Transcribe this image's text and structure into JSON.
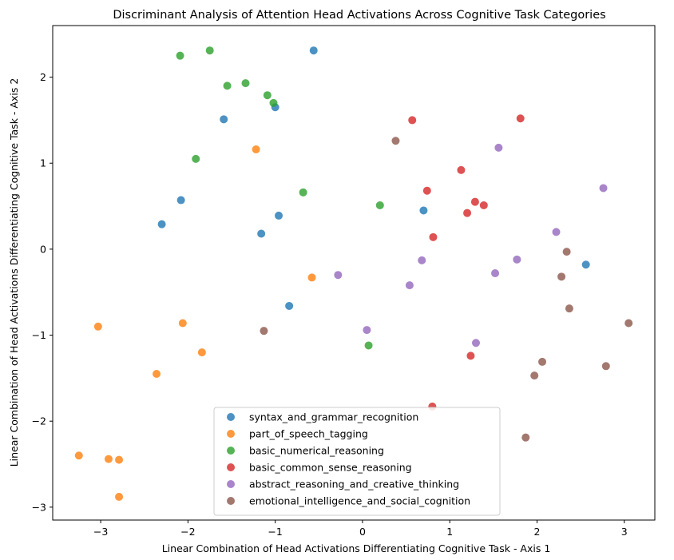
{
  "chart_data": {
    "type": "scatter",
    "title": "Discriminant Analysis of Attention Head Activations Across Cognitive Task Categories",
    "xlabel": "Linear Combination of Head Activations Differentiating Cognitive Task - Axis 1",
    "ylabel": "Linear Combination of Head Activations Differentiating Cognitive Task - Axis 2",
    "xlim": [
      -3.55,
      3.35
    ],
    "ylim": [
      -3.15,
      2.6
    ],
    "xticks": [
      -3,
      -2,
      -1,
      0,
      1,
      2,
      3
    ],
    "yticks": [
      -3,
      -2,
      -1,
      0,
      1,
      2
    ],
    "xtick_labels": [
      "−3",
      "−2",
      "−1",
      "0",
      "1",
      "2",
      "3"
    ],
    "ytick_labels": [
      "−3",
      "−2",
      "−1",
      "0",
      "1",
      "2"
    ],
    "grid": false,
    "legend_position": "lower-center",
    "series": [
      {
        "name": "syntax_and_grammar_recognition",
        "color": "#1f77b4",
        "points": [
          [
            -0.56,
            2.31
          ],
          [
            -1.0,
            1.65
          ],
          [
            -1.59,
            1.51
          ],
          [
            -2.08,
            0.57
          ],
          [
            -2.3,
            0.29
          ],
          [
            -0.96,
            0.39
          ],
          [
            -1.16,
            0.18
          ],
          [
            -0.84,
            -0.66
          ],
          [
            0.7,
            0.45
          ],
          [
            2.56,
            -0.18
          ]
        ]
      },
      {
        "name": "part_of_speech_tagging",
        "color": "#ff7f0e",
        "points": [
          [
            -1.22,
            1.16
          ],
          [
            -0.58,
            -0.33
          ],
          [
            -3.03,
            -0.9
          ],
          [
            -2.06,
            -0.86
          ],
          [
            -1.84,
            -1.2
          ],
          [
            -2.36,
            -1.45
          ],
          [
            -3.25,
            -2.4
          ],
          [
            -2.91,
            -2.44
          ],
          [
            -2.79,
            -2.45
          ],
          [
            -2.79,
            -2.88
          ]
        ]
      },
      {
        "name": "basic_numerical_reasoning",
        "color": "#2ca02c",
        "points": [
          [
            -2.09,
            2.25
          ],
          [
            -1.75,
            2.31
          ],
          [
            -1.55,
            1.9
          ],
          [
            -1.34,
            1.93
          ],
          [
            -1.09,
            1.79
          ],
          [
            -1.02,
            1.7
          ],
          [
            -1.91,
            1.05
          ],
          [
            -0.68,
            0.66
          ],
          [
            0.2,
            0.51
          ],
          [
            0.07,
            -1.12
          ]
        ]
      },
      {
        "name": "basic_common_sense_reasoning",
        "color": "#d62728",
        "points": [
          [
            0.57,
            1.5
          ],
          [
            1.81,
            1.52
          ],
          [
            1.13,
            0.92
          ],
          [
            0.74,
            0.68
          ],
          [
            1.29,
            0.55
          ],
          [
            1.39,
            0.51
          ],
          [
            1.2,
            0.42
          ],
          [
            0.81,
            0.14
          ],
          [
            1.24,
            -1.24
          ],
          [
            0.8,
            -1.83
          ]
        ]
      },
      {
        "name": "abstract_reasoning_and_creative_thinking",
        "color": "#9467bd",
        "points": [
          [
            1.56,
            1.18
          ],
          [
            2.76,
            0.71
          ],
          [
            2.22,
            0.2
          ],
          [
            0.68,
            -0.13
          ],
          [
            1.77,
            -0.12
          ],
          [
            -0.28,
            -0.3
          ],
          [
            1.52,
            -0.28
          ],
          [
            0.54,
            -0.42
          ],
          [
            0.05,
            -0.94
          ],
          [
            1.3,
            -1.09
          ]
        ]
      },
      {
        "name": "emotional_intelligence_and_social_cognition",
        "color": "#8c564b",
        "points": [
          [
            0.38,
            1.26
          ],
          [
            2.34,
            -0.03
          ],
          [
            2.28,
            -0.32
          ],
          [
            2.37,
            -0.69
          ],
          [
            -1.13,
            -0.95
          ],
          [
            3.05,
            -0.86
          ],
          [
            2.06,
            -1.31
          ],
          [
            2.79,
            -1.36
          ],
          [
            1.97,
            -1.47
          ],
          [
            1.87,
            -2.19
          ]
        ]
      }
    ]
  }
}
